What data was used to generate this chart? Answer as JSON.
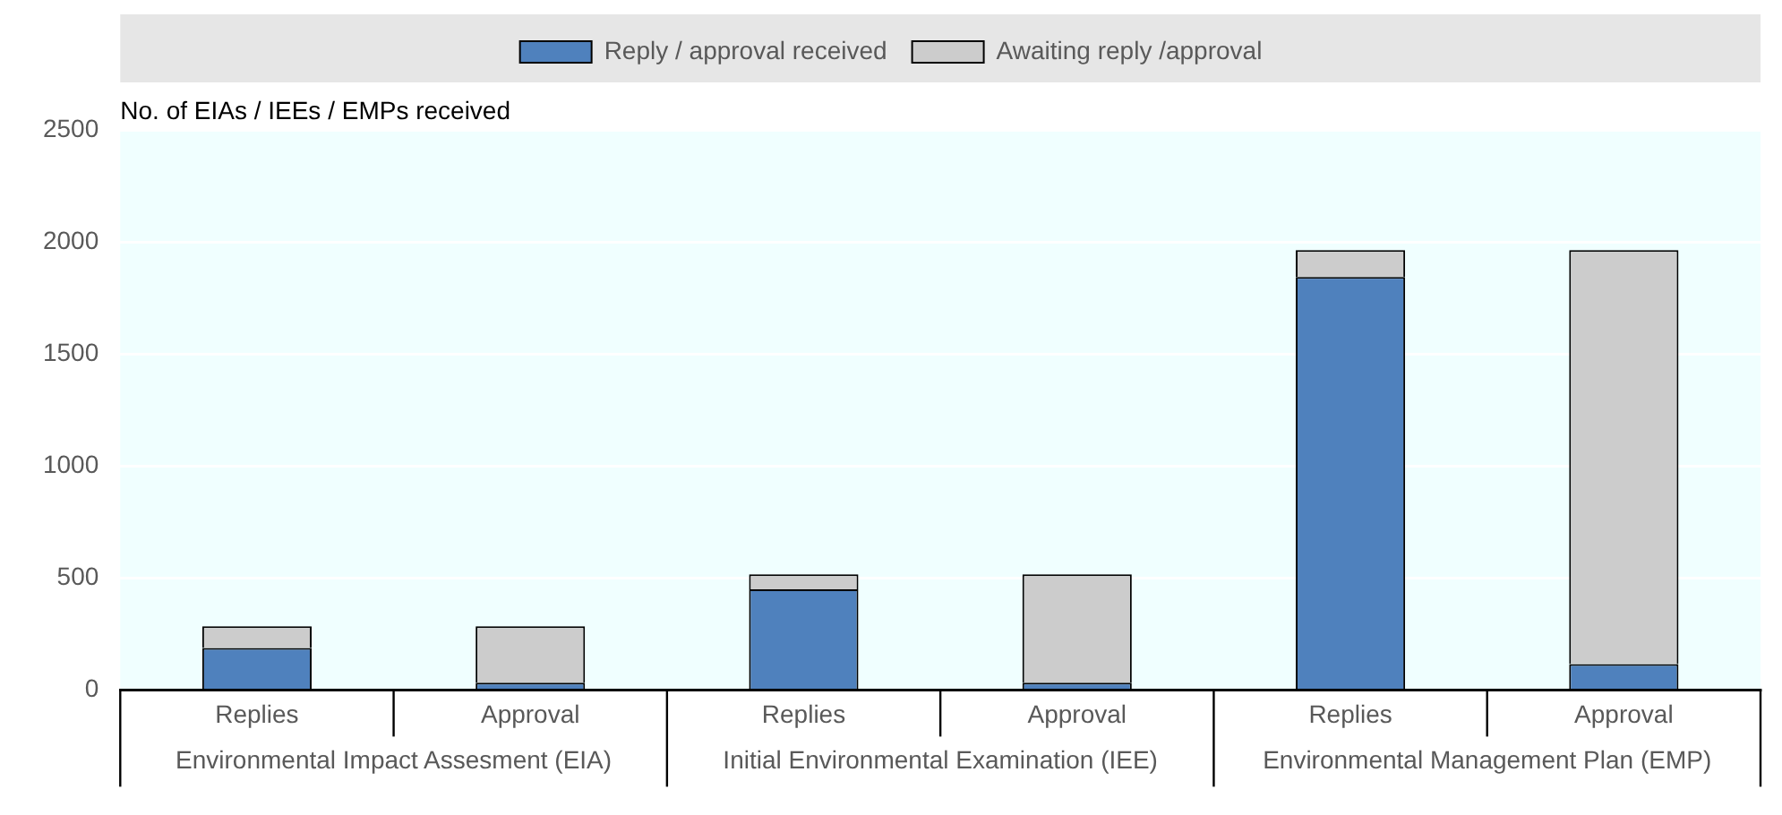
{
  "chart_data": {
    "type": "bar",
    "stacked": true,
    "ylabel": "No. of EIAs / IEEs / EMPs received",
    "categories": [
      "Replies",
      "Approval",
      "Replies",
      "Approval",
      "Replies",
      "Approval"
    ],
    "annotations": [
      "Environmental Impact Assesment (EIA)",
      "Initial Environmental Examination (IEE)",
      "Environmental Management Plan (EMP)"
    ],
    "series": [
      {
        "name": "Reply / approval received",
        "color": "#4f81bd",
        "values": [
          188,
          33,
          450,
          33,
          1845,
          116
        ]
      },
      {
        "name": "Awaiting reply /approval",
        "color": "#cccccc",
        "values": [
          97,
          252,
          67,
          484,
          120,
          1849
        ]
      }
    ],
    "ylim": [
      0,
      2500
    ],
    "yticks": [
      0,
      500,
      {
        "value": 1000,
        "label": "1000"
      },
      {
        "value": 1500,
        "label": "1500"
      },
      {
        "value": 2000,
        "label": "2000"
      },
      {
        "value": 2500,
        "label": "2500"
      }
    ],
    "grid": "y",
    "legend": "top"
  }
}
